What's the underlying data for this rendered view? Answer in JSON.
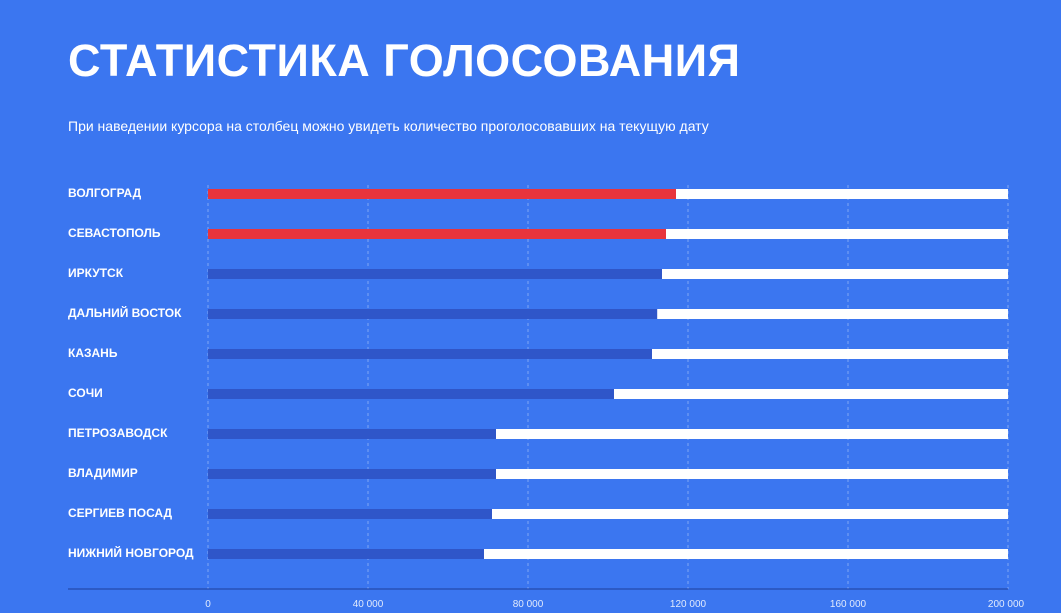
{
  "page": {
    "title": "СТАТИСТИКА ГОЛОСОВАНИЯ",
    "subtitle": "При наведении курсора на столбец можно увидеть количество проголосовавших на текущую дату"
  },
  "colors": {
    "background": "#3b76f0",
    "leader_bar": "#e8343d",
    "bar": "#2f56c9",
    "track": "#ffffff"
  },
  "chart_data": {
    "type": "bar",
    "orientation": "horizontal",
    "categories": [
      "Волгоград",
      "Севастополь",
      "Иркутск",
      "Дальний Восток",
      "Казань",
      "Сочи",
      "Петрозаводск",
      "Владимир",
      "Сергиев Посад",
      "Нижний Новгород"
    ],
    "values": [
      117000,
      114500,
      113500,
      112300,
      111000,
      101500,
      72000,
      72000,
      71000,
      69000
    ],
    "highlighted": [
      true,
      true,
      false,
      false,
      false,
      false,
      false,
      false,
      false,
      false
    ],
    "xlim": [
      0,
      200000
    ],
    "x_ticks": [
      "0",
      "40 000",
      "80 000",
      "120 000",
      "160 000",
      "200 000"
    ],
    "x_tick_values": [
      0,
      40000,
      80000,
      120000,
      160000,
      200000
    ],
    "grid": "vertical dashed"
  }
}
